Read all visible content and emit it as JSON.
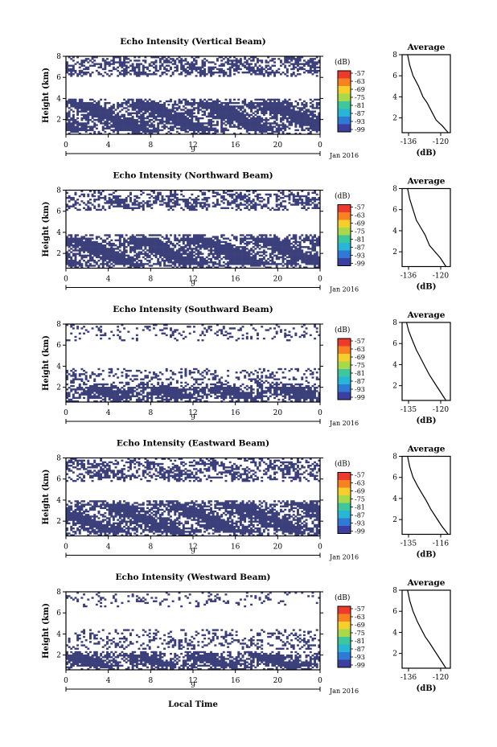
{
  "figure": {
    "xlabel": "Local Time"
  },
  "chart_data": [
    {
      "type": "heatmap",
      "title": "Echo Intensity (Vertical Beam)",
      "ylabel": "Height (km)",
      "ylim": [
        0.6,
        8
      ],
      "yticks": [
        2,
        4,
        6,
        8
      ],
      "xlim": [
        0,
        24
      ],
      "xticks": [
        "0",
        "4",
        "8",
        "12",
        "16",
        "20",
        "0"
      ],
      "date_label": "9",
      "month_label": "Jan 2016",
      "fill_color": "#3b3f7a",
      "colorbar": {
        "unit": "(dB)",
        "labels": [
          "-57",
          "-63",
          "-69",
          "-75",
          "-81",
          "-87",
          "-93",
          "-99"
        ]
      },
      "echo_layers": [
        [
          0.6,
          3.9,
          0.92
        ],
        [
          6.0,
          8.0,
          0.62
        ]
      ],
      "average": {
        "title": "Average",
        "xlabel": "(dB)",
        "xticks": [
          "-136",
          "-120"
        ],
        "xlim": [
          -138,
          -116
        ],
        "profile": [
          [
            -117.0,
            0.6
          ],
          [
            -119.5,
            1.2
          ],
          [
            -122.5,
            1.8
          ],
          [
            -124.5,
            2.6
          ],
          [
            -126.5,
            3.4
          ],
          [
            -128.5,
            4.0
          ],
          [
            -130.5,
            5.0
          ],
          [
            -133.0,
            6.0
          ],
          [
            -134.5,
            7.0
          ],
          [
            -135.5,
            8.0
          ]
        ]
      }
    },
    {
      "type": "heatmap",
      "title": "Echo Intensity (Northward Beam)",
      "ylabel": "Height (km)",
      "ylim": [
        0.6,
        8
      ],
      "yticks": [
        2,
        4,
        6,
        8
      ],
      "xlim": [
        0,
        24
      ],
      "xticks": [
        "0",
        "4",
        "8",
        "12",
        "16",
        "20",
        "0"
      ],
      "date_label": "9",
      "month_label": "Jan 2016",
      "fill_color": "#3b3f7a",
      "colorbar": {
        "unit": "(dB)",
        "labels": [
          "-57",
          "-63",
          "-69",
          "-75",
          "-81",
          "-87",
          "-93",
          "-99"
        ]
      },
      "echo_layers": [
        [
          0.6,
          3.8,
          0.9
        ],
        [
          6.1,
          8.0,
          0.55
        ]
      ],
      "average": {
        "title": "Average",
        "xlabel": "(dB)",
        "xticks": [
          "-136",
          "-120"
        ],
        "xlim": [
          -138,
          -116
        ],
        "profile": [
          [
            -118.0,
            0.6
          ],
          [
            -120.5,
            1.4
          ],
          [
            -123.0,
            2.0
          ],
          [
            -125.5,
            2.6
          ],
          [
            -127.5,
            3.6
          ],
          [
            -129.5,
            4.3
          ],
          [
            -131.5,
            5.0
          ],
          [
            -133.0,
            6.0
          ],
          [
            -134.5,
            7.0
          ],
          [
            -135.5,
            8.0
          ]
        ]
      }
    },
    {
      "type": "heatmap",
      "title": "Echo Intensity (Southward Beam)",
      "ylabel": "Height (km)",
      "ylim": [
        0.6,
        8
      ],
      "yticks": [
        2,
        4,
        6,
        8
      ],
      "xlim": [
        0,
        24
      ],
      "xticks": [
        "0",
        "4",
        "8",
        "12",
        "16",
        "20",
        "0"
      ],
      "date_label": "9",
      "month_label": "Jan 2016",
      "fill_color": "#3b3f7a",
      "colorbar": {
        "unit": "(dB)",
        "labels": [
          "-57",
          "-63",
          "-69",
          "-75",
          "-81",
          "-87",
          "-93",
          "-99"
        ]
      },
      "echo_layers": [
        [
          0.6,
          2.3,
          0.92
        ],
        [
          2.4,
          3.8,
          0.35
        ],
        [
          6.4,
          8.0,
          0.22
        ]
      ],
      "average": {
        "title": "Average",
        "xlabel": "(dB)",
        "xticks": [
          "-135",
          "-120"
        ],
        "xlim": [
          -138,
          -116
        ],
        "profile": [
          [
            -118.0,
            0.6
          ],
          [
            -120.5,
            1.4
          ],
          [
            -123.0,
            2.2
          ],
          [
            -125.5,
            3.0
          ],
          [
            -127.5,
            3.8
          ],
          [
            -129.5,
            4.6
          ],
          [
            -131.5,
            5.4
          ],
          [
            -133.5,
            6.4
          ],
          [
            -135.0,
            7.2
          ],
          [
            -136.0,
            8.0
          ]
        ]
      }
    },
    {
      "type": "heatmap",
      "title": "Echo Intensity (Eastward Beam)",
      "ylabel": "Height (km)",
      "ylim": [
        0.6,
        8
      ],
      "yticks": [
        2,
        4,
        6,
        8
      ],
      "xlim": [
        0,
        24
      ],
      "xticks": [
        "0",
        "4",
        "8",
        "12",
        "16",
        "20",
        "0"
      ],
      "date_label": "9",
      "month_label": "Jan 2016",
      "fill_color": "#3b3f7a",
      "colorbar": {
        "unit": "(dB)",
        "labels": [
          "-57",
          "-63",
          "-69",
          "-75",
          "-81",
          "-87",
          "-93",
          "-99"
        ]
      },
      "echo_layers": [
        [
          0.6,
          3.9,
          0.88
        ],
        [
          5.8,
          8.0,
          0.55
        ]
      ],
      "average": {
        "title": "Average",
        "xlabel": "(dB)",
        "xticks": [
          "-135",
          "-116"
        ],
        "xlim": [
          -138,
          -116
        ],
        "profile": [
          [
            -117.0,
            0.6
          ],
          [
            -120.0,
            1.4
          ],
          [
            -122.5,
            2.2
          ],
          [
            -125.0,
            3.0
          ],
          [
            -127.0,
            3.8
          ],
          [
            -129.0,
            4.5
          ],
          [
            -131.0,
            5.2
          ],
          [
            -133.0,
            6.0
          ],
          [
            -134.5,
            7.0
          ],
          [
            -135.5,
            8.0
          ]
        ]
      }
    },
    {
      "type": "heatmap",
      "title": "Echo Intensity (Westward Beam)",
      "ylabel": "Height (km)",
      "ylim": [
        0.6,
        8
      ],
      "yticks": [
        2,
        4,
        6,
        8
      ],
      "xlim": [
        0,
        24
      ],
      "xticks": [
        "0",
        "4",
        "8",
        "12",
        "16",
        "20",
        "0"
      ],
      "date_label": "9",
      "month_label": "Jan 2016",
      "fill_color": "#3b3f7a",
      "colorbar": {
        "unit": "(dB)",
        "labels": [
          "-57",
          "-63",
          "-69",
          "-75",
          "-81",
          "-87",
          "-93",
          "-99"
        ]
      },
      "echo_layers": [
        [
          0.6,
          2.4,
          0.9
        ],
        [
          2.5,
          4.4,
          0.35
        ],
        [
          6.6,
          8.0,
          0.18
        ]
      ],
      "average": {
        "title": "Average",
        "xlabel": "(dB)",
        "xticks": [
          "-136",
          "-120"
        ],
        "xlim": [
          -138,
          -116
        ],
        "profile": [
          [
            -118.0,
            0.6
          ],
          [
            -120.5,
            1.4
          ],
          [
            -123.0,
            2.2
          ],
          [
            -125.5,
            3.0
          ],
          [
            -127.5,
            3.6
          ],
          [
            -129.0,
            4.2
          ],
          [
            -131.0,
            5.0
          ],
          [
            -133.0,
            6.0
          ],
          [
            -134.5,
            7.0
          ],
          [
            -135.5,
            8.0
          ]
        ]
      }
    }
  ]
}
